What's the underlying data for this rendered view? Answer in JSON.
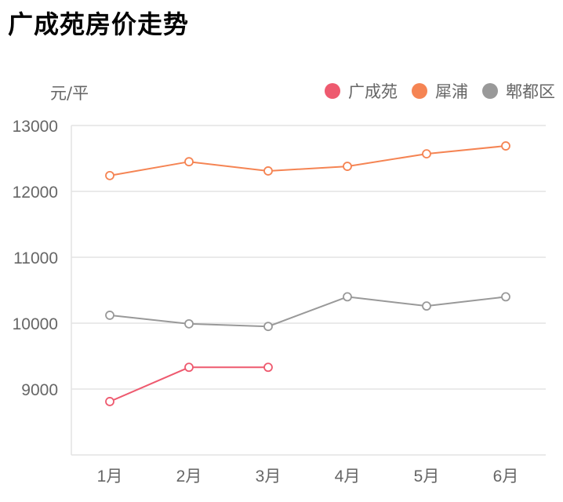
{
  "title": "广成苑房价走势",
  "unit_label": "元/平",
  "legend": [
    {
      "label": "广成苑",
      "color": "#EE5A6F"
    },
    {
      "label": "犀浦",
      "color": "#F58453"
    },
    {
      "label": "郫都区",
      "color": "#999999"
    }
  ],
  "chart_data": {
    "type": "line",
    "title": "广成苑房价走势",
    "xlabel": "",
    "ylabel": "元/平",
    "categories": [
      "1月",
      "2月",
      "3月",
      "4月",
      "5月",
      "6月"
    ],
    "ylim": [
      8000,
      13000
    ],
    "yticks": [
      9000,
      10000,
      11000,
      12000,
      13000
    ],
    "grid": true,
    "legend_position": "top-right",
    "series": [
      {
        "name": "广成苑",
        "color": "#EE5A6F",
        "values": [
          8810,
          9330,
          9330,
          null,
          null,
          null
        ]
      },
      {
        "name": "犀浦",
        "color": "#F58453",
        "values": [
          12240,
          12450,
          12310,
          12380,
          12570,
          12690
        ]
      },
      {
        "name": "郫都区",
        "color": "#999999",
        "values": [
          10120,
          9990,
          9950,
          10400,
          10260,
          10400
        ]
      }
    ]
  }
}
